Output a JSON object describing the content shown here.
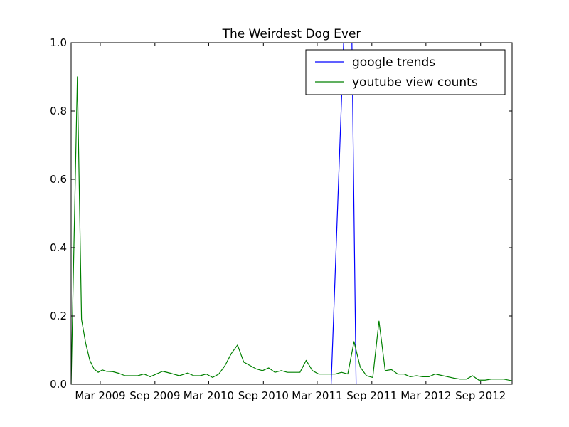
{
  "chart_data": {
    "type": "line",
    "title": "The Weirdest Dog Ever",
    "xlabel": "",
    "ylabel": "",
    "x_type": "date",
    "xlim": [
      "2008-11-23",
      "2012-12-16"
    ],
    "ylim": [
      0,
      1.0
    ],
    "x_ticks": [
      {
        "date": "2009-03-01",
        "label": "Mar 2009"
      },
      {
        "date": "2009-09-01",
        "label": "Sep 2009"
      },
      {
        "date": "2010-03-01",
        "label": "Mar 2010"
      },
      {
        "date": "2010-09-01",
        "label": "Sep 2010"
      },
      {
        "date": "2011-03-01",
        "label": "Mar 2011"
      },
      {
        "date": "2011-09-01",
        "label": "Sep 2011"
      },
      {
        "date": "2012-03-01",
        "label": "Mar 2012"
      },
      {
        "date": "2012-09-01",
        "label": "Sep 2012"
      }
    ],
    "y_ticks": [
      {
        "value": 0.0,
        "label": "0.0"
      },
      {
        "value": 0.2,
        "label": "0.2"
      },
      {
        "value": 0.4,
        "label": "0.4"
      },
      {
        "value": 0.6,
        "label": "0.6"
      },
      {
        "value": 0.8,
        "label": "0.8"
      },
      {
        "value": 1.0,
        "label": "1.0"
      }
    ],
    "grid": false,
    "legend_position": "top-right",
    "series": [
      {
        "name": "google trends",
        "color": "#0000ff",
        "points": [
          [
            "2008-11-23",
            0
          ],
          [
            "2009-06-01",
            0
          ],
          [
            "2010-01-01",
            0
          ],
          [
            "2010-08-01",
            0
          ],
          [
            "2011-03-01",
            0
          ],
          [
            "2011-04-17",
            0
          ],
          [
            "2011-05-29",
            1.0
          ],
          [
            "2011-06-26",
            1.0
          ],
          [
            "2011-07-10",
            0
          ],
          [
            "2011-08-01",
            0
          ],
          [
            "2012-02-01",
            0
          ],
          [
            "2012-08-01",
            0
          ],
          [
            "2012-12-16",
            0
          ]
        ]
      },
      {
        "name": "youtube view counts",
        "color": "#008000",
        "points": [
          [
            "2008-11-23",
            0.0
          ],
          [
            "2008-12-14",
            0.9
          ],
          [
            "2008-12-28",
            0.19
          ],
          [
            "2009-01-11",
            0.12
          ],
          [
            "2009-01-25",
            0.07
          ],
          [
            "2009-02-08",
            0.045
          ],
          [
            "2009-02-22",
            0.035
          ],
          [
            "2009-03-08",
            0.042
          ],
          [
            "2009-03-22",
            0.038
          ],
          [
            "2009-04-12",
            0.037
          ],
          [
            "2009-05-03",
            0.032
          ],
          [
            "2009-05-24",
            0.025
          ],
          [
            "2009-06-14",
            0.025
          ],
          [
            "2009-07-05",
            0.025
          ],
          [
            "2009-07-26",
            0.03
          ],
          [
            "2009-08-16",
            0.022
          ],
          [
            "2009-09-06",
            0.03
          ],
          [
            "2009-09-27",
            0.038
          ],
          [
            "2009-10-25",
            0.032
          ],
          [
            "2009-11-22",
            0.025
          ],
          [
            "2009-12-20",
            0.033
          ],
          [
            "2010-01-10",
            0.025
          ],
          [
            "2010-01-31",
            0.025
          ],
          [
            "2010-02-21",
            0.03
          ],
          [
            "2010-03-14",
            0.02
          ],
          [
            "2010-04-04",
            0.03
          ],
          [
            "2010-04-25",
            0.055
          ],
          [
            "2010-05-16",
            0.09
          ],
          [
            "2010-06-06",
            0.115
          ],
          [
            "2010-06-27",
            0.065
          ],
          [
            "2010-07-18",
            0.055
          ],
          [
            "2010-08-08",
            0.045
          ],
          [
            "2010-08-29",
            0.04
          ],
          [
            "2010-09-19",
            0.048
          ],
          [
            "2010-10-10",
            0.035
          ],
          [
            "2010-10-31",
            0.04
          ],
          [
            "2010-11-21",
            0.035
          ],
          [
            "2010-12-12",
            0.035
          ],
          [
            "2011-01-02",
            0.035
          ],
          [
            "2011-01-23",
            0.07
          ],
          [
            "2011-02-13",
            0.04
          ],
          [
            "2011-03-06",
            0.03
          ],
          [
            "2011-04-03",
            0.03
          ],
          [
            "2011-05-01",
            0.03
          ],
          [
            "2011-05-22",
            0.035
          ],
          [
            "2011-06-12",
            0.03
          ],
          [
            "2011-07-03",
            0.125
          ],
          [
            "2011-07-24",
            0.05
          ],
          [
            "2011-08-14",
            0.025
          ],
          [
            "2011-09-04",
            0.02
          ],
          [
            "2011-09-25",
            0.185
          ],
          [
            "2011-10-16",
            0.04
          ],
          [
            "2011-11-06",
            0.043
          ],
          [
            "2011-11-27",
            0.03
          ],
          [
            "2011-12-18",
            0.03
          ],
          [
            "2012-01-08",
            0.022
          ],
          [
            "2012-01-29",
            0.025
          ],
          [
            "2012-02-19",
            0.022
          ],
          [
            "2012-03-11",
            0.022
          ],
          [
            "2012-04-01",
            0.03
          ],
          [
            "2012-04-22",
            0.026
          ],
          [
            "2012-05-13",
            0.022
          ],
          [
            "2012-06-03",
            0.018
          ],
          [
            "2012-06-24",
            0.015
          ],
          [
            "2012-07-15",
            0.015
          ],
          [
            "2012-08-05",
            0.025
          ],
          [
            "2012-08-26",
            0.012
          ],
          [
            "2012-09-16",
            0.012
          ],
          [
            "2012-10-07",
            0.015
          ],
          [
            "2012-10-28",
            0.015
          ],
          [
            "2012-11-18",
            0.015
          ],
          [
            "2012-12-16",
            0.01
          ]
        ]
      }
    ]
  }
}
